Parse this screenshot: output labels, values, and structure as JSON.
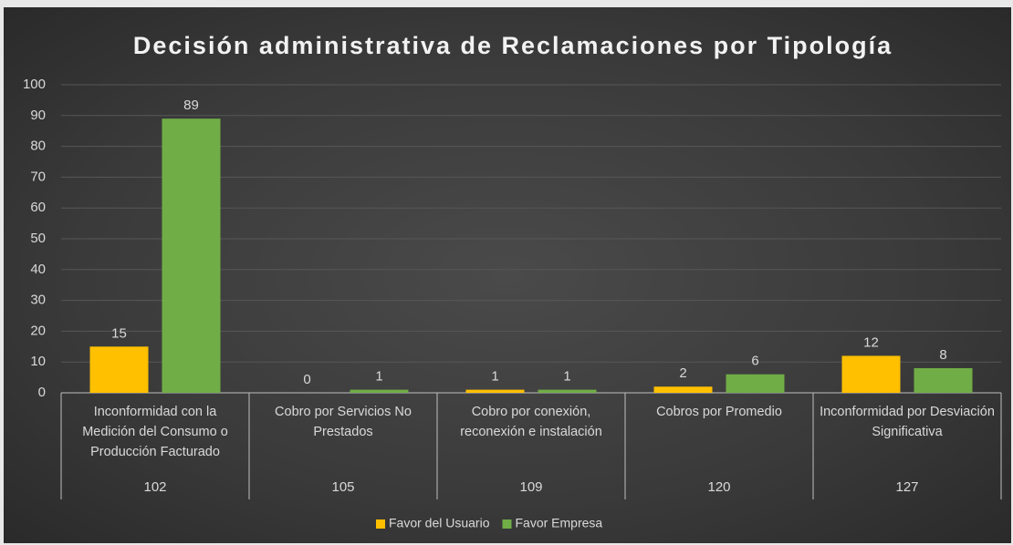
{
  "chart_data": {
    "type": "bar",
    "title": "Decisión administrativa de Reclamaciones por Tipología",
    "categories": [
      "Inconformidad con la Medición del Consumo o Producción Facturado",
      "Cobro por Servicios No Prestados",
      "Cobro por conexión, reconexión e instalación",
      "Cobros por Promedio",
      "Inconformidad por Desviación Significativa"
    ],
    "category_codes": [
      "102",
      "105",
      "109",
      "120",
      "127"
    ],
    "series": [
      {
        "name": "Favor del Usuario",
        "color": "#ffc000",
        "values": [
          15,
          0,
          1,
          2,
          12
        ]
      },
      {
        "name": "Favor Empresa",
        "color": "#70ad47",
        "values": [
          89,
          1,
          1,
          6,
          8
        ]
      }
    ],
    "ylim": [
      0,
      100
    ],
    "yticks": [
      0,
      10,
      20,
      30,
      40,
      50,
      60,
      70,
      80,
      90,
      100
    ],
    "grid": true,
    "legend": "bottom"
  }
}
